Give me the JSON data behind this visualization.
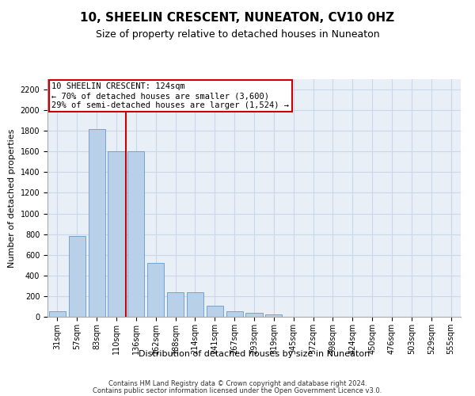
{
  "title": "10, SHEELIN CRESCENT, NUNEATON, CV10 0HZ",
  "subtitle": "Size of property relative to detached houses in Nuneaton",
  "xlabel": "Distribution of detached houses by size in Nuneaton",
  "ylabel": "Number of detached properties",
  "categories": [
    "31sqm",
    "57sqm",
    "83sqm",
    "110sqm",
    "136sqm",
    "162sqm",
    "188sqm",
    "214sqm",
    "241sqm",
    "267sqm",
    "293sqm",
    "319sqm",
    "345sqm",
    "372sqm",
    "398sqm",
    "424sqm",
    "450sqm",
    "476sqm",
    "503sqm",
    "529sqm",
    "555sqm"
  ],
  "values": [
    50,
    780,
    1820,
    1600,
    1600,
    520,
    240,
    240,
    110,
    55,
    40,
    20,
    0,
    0,
    0,
    0,
    0,
    0,
    0,
    0,
    0
  ],
  "bar_color": "#b8d0e8",
  "bar_edgecolor": "#6699cc",
  "marker_line_color": "#cc0000",
  "annotation_line1": "10 SHEELIN CRESCENT: 124sqm",
  "annotation_line2": "← 70% of detached houses are smaller (3,600)",
  "annotation_line3": "29% of semi-detached houses are larger (1,524) →",
  "annotation_box_facecolor": "#ffffff",
  "annotation_box_edgecolor": "#cc0000",
  "ylim": [
    0,
    2300
  ],
  "yticks": [
    0,
    200,
    400,
    600,
    800,
    1000,
    1200,
    1400,
    1600,
    1800,
    2000,
    2200
  ],
  "grid_color": "#c8d8e8",
  "bg_color": "#e8eff7",
  "footer1": "Contains HM Land Registry data © Crown copyright and database right 2024.",
  "footer2": "Contains public sector information licensed under the Open Government Licence v3.0.",
  "title_fontsize": 11,
  "subtitle_fontsize": 9,
  "axis_label_fontsize": 8,
  "tick_fontsize": 7,
  "annotation_fontsize": 7.5,
  "footer_fontsize": 6
}
